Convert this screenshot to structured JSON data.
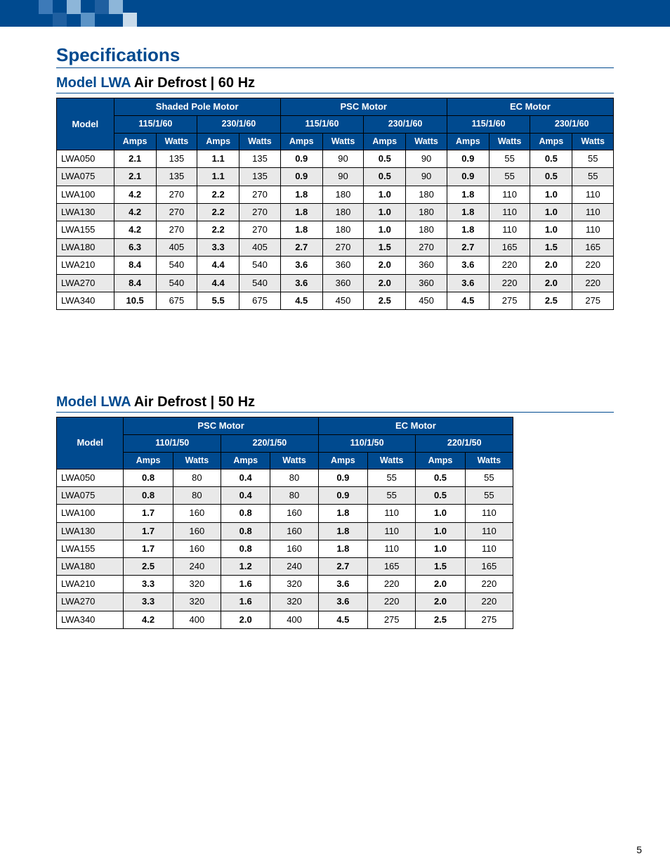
{
  "colors": {
    "brand_blue": "#004a8f",
    "stripe_gray": "#e9e9e9",
    "white": "#ffffff",
    "black": "#000000",
    "motif": [
      "#3d7ab8",
      "#1f5fa0",
      "#8db6d9",
      "#5c94c7",
      "#1f5fa0",
      "#8db6d9",
      "#c9dbeb"
    ]
  },
  "page_number": "5",
  "page_title": "Specifications",
  "table60": {
    "title_blue": "Model LWA ",
    "title_black": "Air Defrost | 60 Hz",
    "model_header": "Model",
    "motor_groups": [
      "Shaded Pole Motor",
      "PSC Motor",
      "EC Motor"
    ],
    "voltages": [
      "115/1/60",
      "230/1/60",
      "115/1/60",
      "230/1/60",
      "115/1/60",
      "230/1/60"
    ],
    "col_labels": [
      "Amps",
      "Watts"
    ],
    "rows": [
      {
        "model": "LWA050",
        "vals": [
          "2.1",
          "135",
          "1.1",
          "135",
          "0.9",
          "90",
          "0.5",
          "90",
          "0.9",
          "55",
          "0.5",
          "55"
        ]
      },
      {
        "model": "LWA075",
        "vals": [
          "2.1",
          "135",
          "1.1",
          "135",
          "0.9",
          "90",
          "0.5",
          "90",
          "0.9",
          "55",
          "0.5",
          "55"
        ]
      },
      {
        "model": "LWA100",
        "vals": [
          "4.2",
          "270",
          "2.2",
          "270",
          "1.8",
          "180",
          "1.0",
          "180",
          "1.8",
          "110",
          "1.0",
          "110"
        ]
      },
      {
        "model": "LWA130",
        "vals": [
          "4.2",
          "270",
          "2.2",
          "270",
          "1.8",
          "180",
          "1.0",
          "180",
          "1.8",
          "110",
          "1.0",
          "110"
        ]
      },
      {
        "model": "LWA155",
        "vals": [
          "4.2",
          "270",
          "2.2",
          "270",
          "1.8",
          "180",
          "1.0",
          "180",
          "1.8",
          "110",
          "1.0",
          "110"
        ]
      },
      {
        "model": "LWA180",
        "vals": [
          "6.3",
          "405",
          "3.3",
          "405",
          "2.7",
          "270",
          "1.5",
          "270",
          "2.7",
          "165",
          "1.5",
          "165"
        ]
      },
      {
        "model": "LWA210",
        "vals": [
          "8.4",
          "540",
          "4.4",
          "540",
          "3.6",
          "360",
          "2.0",
          "360",
          "3.6",
          "220",
          "2.0",
          "220"
        ]
      },
      {
        "model": "LWA270",
        "vals": [
          "8.4",
          "540",
          "4.4",
          "540",
          "3.6",
          "360",
          "2.0",
          "360",
          "3.6",
          "220",
          "2.0",
          "220"
        ]
      },
      {
        "model": "LWA340",
        "vals": [
          "10.5",
          "675",
          "5.5",
          "675",
          "4.5",
          "450",
          "2.5",
          "450",
          "4.5",
          "275",
          "2.5",
          "275"
        ]
      }
    ]
  },
  "table50": {
    "title_blue": "Model LWA ",
    "title_black": "Air Defrost | 50 Hz",
    "model_header": "Model",
    "motor_groups": [
      "PSC Motor",
      "EC Motor"
    ],
    "voltages": [
      "110/1/50",
      "220/1/50",
      "110/1/50",
      "220/1/50"
    ],
    "col_labels": [
      "Amps",
      "Watts"
    ],
    "width_percent": 82,
    "rows": [
      {
        "model": "LWA050",
        "vals": [
          "0.8",
          "80",
          "0.4",
          "80",
          "0.9",
          "55",
          "0.5",
          "55"
        ]
      },
      {
        "model": "LWA075",
        "vals": [
          "0.8",
          "80",
          "0.4",
          "80",
          "0.9",
          "55",
          "0.5",
          "55"
        ]
      },
      {
        "model": "LWA100",
        "vals": [
          "1.7",
          "160",
          "0.8",
          "160",
          "1.8",
          "110",
          "1.0",
          "110"
        ]
      },
      {
        "model": "LWA130",
        "vals": [
          "1.7",
          "160",
          "0.8",
          "160",
          "1.8",
          "110",
          "1.0",
          "110"
        ]
      },
      {
        "model": "LWA155",
        "vals": [
          "1.7",
          "160",
          "0.8",
          "160",
          "1.8",
          "110",
          "1.0",
          "110"
        ]
      },
      {
        "model": "LWA180",
        "vals": [
          "2.5",
          "240",
          "1.2",
          "240",
          "2.7",
          "165",
          "1.5",
          "165"
        ]
      },
      {
        "model": "LWA210",
        "vals": [
          "3.3",
          "320",
          "1.6",
          "320",
          "3.6",
          "220",
          "2.0",
          "220"
        ]
      },
      {
        "model": "LWA270",
        "vals": [
          "3.3",
          "320",
          "1.6",
          "320",
          "3.6",
          "220",
          "2.0",
          "220"
        ]
      },
      {
        "model": "LWA340",
        "vals": [
          "4.2",
          "400",
          "2.0",
          "400",
          "4.5",
          "275",
          "2.5",
          "275"
        ]
      }
    ]
  }
}
